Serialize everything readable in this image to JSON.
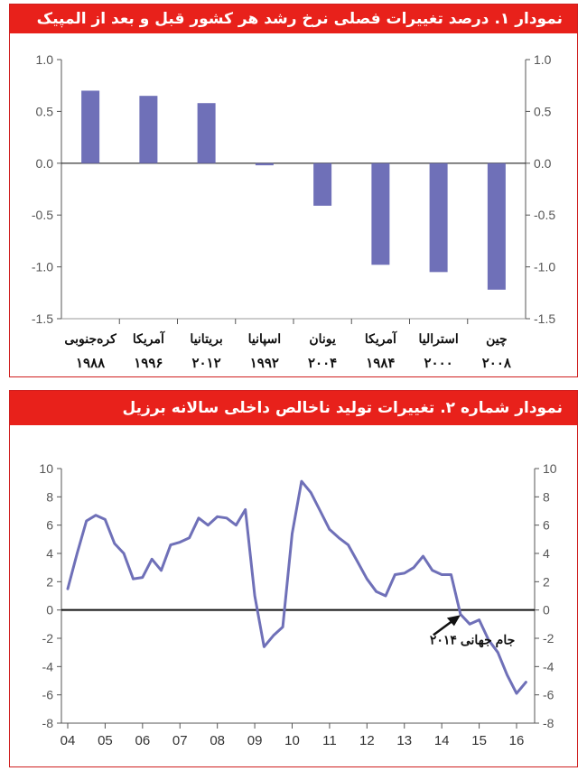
{
  "charts": [
    {
      "title": "نمودار ۱. درصد تغییرات فصلی نرخ رشد هر کشور قبل و بعد از المپیک",
      "chart_data": {
        "type": "bar",
        "categories": [
          {
            "name": "کره‌جنوبی",
            "year": "۱۹۸۸"
          },
          {
            "name": "آمریکا",
            "year": "۱۹۹۶"
          },
          {
            "name": "بریتانیا",
            "year": "۲۰۱۲"
          },
          {
            "name": "اسپانیا",
            "year": "۱۹۹۲"
          },
          {
            "name": "یونان",
            "year": "۲۰۰۴"
          },
          {
            "name": "آمریکا",
            "year": "۱۹۸۴"
          },
          {
            "name": "استرالیا",
            "year": "۲۰۰۰"
          },
          {
            "name": "چین",
            "year": "۲۰۰۸"
          }
        ],
        "values": [
          0.7,
          0.65,
          0.58,
          -0.02,
          -0.41,
          -0.98,
          -1.05,
          -1.22
        ],
        "ylim": [
          -1.5,
          1.0
        ],
        "yticks": [
          "1.0",
          "0.5",
          "0.0",
          "-0.5",
          "-1.0",
          "-1.5"
        ],
        "bar_color": "#6f70b8"
      }
    },
    {
      "title": "نمودار شماره ۲. تغییرات تولید ناخالص داخلی سالانه برزیل",
      "chart_data": {
        "type": "line",
        "x": [
          2004.0,
          2004.25,
          2004.5,
          2004.75,
          2005.0,
          2005.25,
          2005.5,
          2005.75,
          2006.0,
          2006.25,
          2006.5,
          2006.75,
          2007.0,
          2007.25,
          2007.5,
          2007.75,
          2008.0,
          2008.25,
          2008.5,
          2008.75,
          2009.0,
          2009.25,
          2009.5,
          2009.75,
          2010.0,
          2010.25,
          2010.5,
          2010.75,
          2011.0,
          2011.25,
          2011.5,
          2011.75,
          2012.0,
          2012.25,
          2012.5,
          2012.75,
          2013.0,
          2013.25,
          2013.5,
          2013.75,
          2014.0,
          2014.25,
          2014.5,
          2014.75,
          2015.0,
          2015.25,
          2015.5,
          2015.75,
          2016.0,
          2016.25
        ],
        "values": [
          1.5,
          4.0,
          6.3,
          6.7,
          6.4,
          4.7,
          4.0,
          2.2,
          2.3,
          3.6,
          2.8,
          4.6,
          4.8,
          5.1,
          6.5,
          6.0,
          6.6,
          6.5,
          6.0,
          7.1,
          1.0,
          -2.6,
          -1.8,
          -1.2,
          5.4,
          9.1,
          8.3,
          7.0,
          5.7,
          5.1,
          4.6,
          3.4,
          2.2,
          1.3,
          1.0,
          2.5,
          2.6,
          3.0,
          3.8,
          2.8,
          2.5,
          2.5,
          -0.3,
          -1.0,
          -0.7,
          -2.1,
          -3.0,
          -4.6,
          -5.9,
          -5.1
        ],
        "ylim": [
          -8,
          10
        ],
        "yticks": [
          "10",
          "8",
          "6",
          "4",
          "2",
          "0",
          "-2",
          "-4",
          "-6",
          "-8"
        ],
        "xticks": [
          "04",
          "05",
          "06",
          "07",
          "08",
          "09",
          "10",
          "11",
          "12",
          "13",
          "14",
          "15",
          "16"
        ],
        "annotation": {
          "text": "جام جهانی ۲۰۱۴",
          "x": 2014.5,
          "y": -0.3
        },
        "line_color": "#6f70b8"
      }
    }
  ]
}
